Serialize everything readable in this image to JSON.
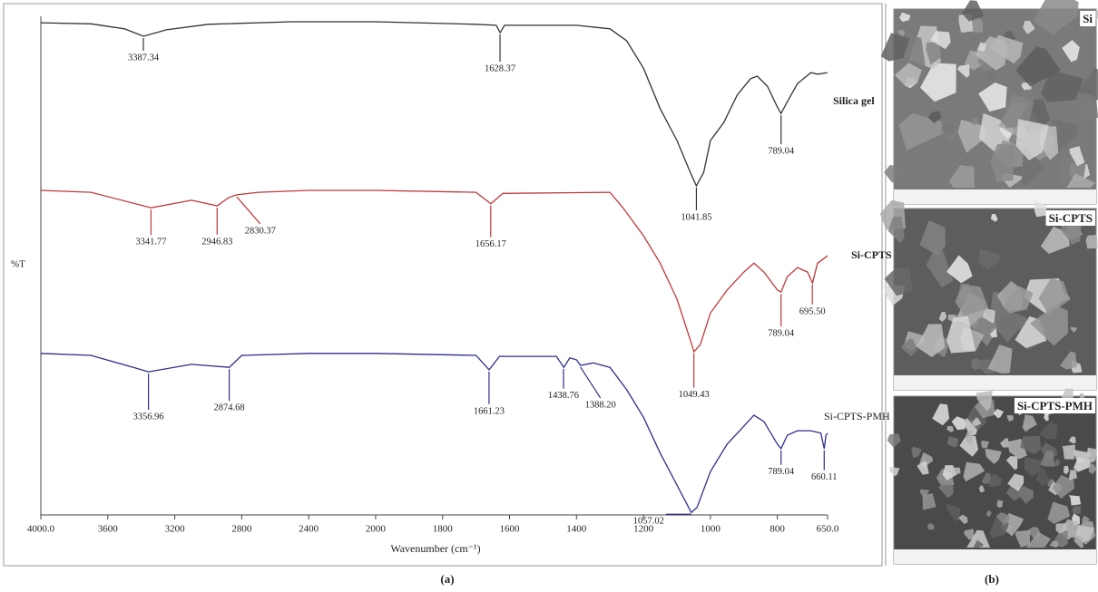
{
  "chart_data": {
    "type": "line",
    "xlabel": "Wavenumber (cm⁻¹)",
    "ylabel": "%T",
    "xlim": [
      4000,
      650
    ],
    "ylim": [
      0,
      100
    ],
    "xbreak": {
      "at": 2000,
      "factor": 2
    },
    "xticks": [
      {
        "value": 4000,
        "label": "4000.0"
      },
      3600,
      3200,
      2800,
      2400,
      2000,
      1800,
      1600,
      1400,
      1200,
      1000,
      800,
      {
        "value": 650,
        "label": "650.0"
      }
    ],
    "series": [
      {
        "name": "Silica gel",
        "color": "#333333",
        "x": [
          4000,
          3700,
          3500,
          3387,
          3250,
          3000,
          2500,
          2000,
          1700,
          1640,
          1628,
          1615,
          1400,
          1300,
          1250,
          1200,
          1150,
          1100,
          1060,
          1042,
          1020,
          1000,
          960,
          920,
          880,
          860,
          830,
          800,
          789,
          770,
          740,
          700,
          680,
          650
        ],
        "values": [
          98.7,
          98.5,
          97.5,
          96.0,
          97.3,
          98.4,
          98.9,
          98.9,
          98.4,
          98.2,
          96.7,
          98.2,
          98.2,
          97.5,
          95.1,
          89.6,
          81.5,
          75.1,
          68.7,
          66.0,
          68.7,
          75.1,
          78.7,
          84.2,
          87.5,
          88.0,
          86.0,
          81.8,
          80.5,
          82.9,
          86.5,
          88.7,
          88.4,
          88.7
        ],
        "peaks": [
          3387.34,
          1628.37,
          1041.85,
          789.04
        ]
      },
      {
        "name": "Si-CPTS",
        "color": "#c0393b",
        "x": [
          4000,
          3700,
          3341,
          3100,
          2946,
          2880,
          2830,
          2700,
          2400,
          2000,
          1700,
          1656,
          1620,
          1300,
          1260,
          1200,
          1150,
          1100,
          1060,
          1049,
          1030,
          1000,
          950,
          900,
          870,
          840,
          800,
          789,
          770,
          740,
          710,
          695,
          680,
          660,
          650
        ],
        "values": [
          65.1,
          64.7,
          61.6,
          63.1,
          62.0,
          63.6,
          64.2,
          64.7,
          65.1,
          65.1,
          64.7,
          62.4,
          64.5,
          64.7,
          61.5,
          56.0,
          50.5,
          43.3,
          35.1,
          32.7,
          34.2,
          40.5,
          45.1,
          48.7,
          50.5,
          48.7,
          45.1,
          44.7,
          47.8,
          49.6,
          48.7,
          46.5,
          50.5,
          51.5,
          52.0
        ],
        "peaks": [
          3341.77,
          2946.83,
          2830.37,
          1656.17,
          1049.43,
          789.04,
          {
            "value": 695.5,
            "label": "695.50"
          }
        ]
      },
      {
        "name": "Si-CPTS-PMH",
        "color": "#2e2e8a",
        "x": [
          4000,
          3700,
          3356,
          3100,
          2874,
          2800,
          2400,
          2000,
          1700,
          1661,
          1630,
          1460,
          1438,
          1420,
          1400,
          1388,
          1350,
          1300,
          1250,
          1200,
          1150,
          1100,
          1057,
          1040,
          1000,
          950,
          900,
          870,
          840,
          800,
          789,
          770,
          740,
          700,
          670,
          660,
          655,
          650
        ],
        "values": [
          32.4,
          32.0,
          28.7,
          30.2,
          29.6,
          32.0,
          32.4,
          32.4,
          32.0,
          29.1,
          31.8,
          31.8,
          29.6,
          31.5,
          31.1,
          30.0,
          30.5,
          29.6,
          25.1,
          19.6,
          12.4,
          6.0,
          0.5,
          1.5,
          8.7,
          14.2,
          17.8,
          20.0,
          18.7,
          14.2,
          13.3,
          16.0,
          16.9,
          16.9,
          16.4,
          13.3,
          16.0,
          16.4
        ],
        "peaks": [
          3356.96,
          2874.68,
          1661.23,
          1438.76,
          {
            "value": 1388.2,
            "label": "1388.20"
          },
          1057.02,
          789.04,
          660.11
        ]
      }
    ]
  },
  "panel_labels": [
    "(a)",
    "(b)"
  ],
  "sem_images": [
    "Si",
    "Si-CPTS",
    "Si-CPTS-PMH"
  ]
}
